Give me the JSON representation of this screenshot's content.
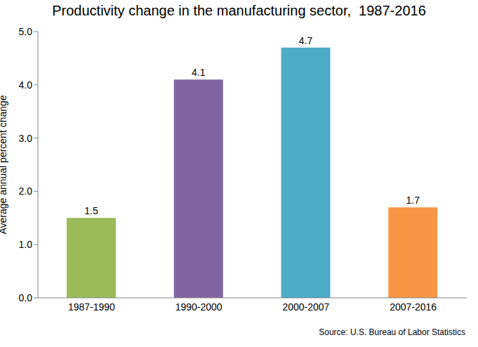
{
  "chart_data": {
    "type": "bar",
    "title": "Productivity change in the manufacturing sector,  1987-2016",
    "y_label": "Average annual percent change",
    "source": "Source: U.S. Bureau of Labor Statistics",
    "categories": [
      "1987-1990",
      "1990-2000",
      "2000-2007",
      "2007-2016"
    ],
    "values": [
      1.5,
      4.1,
      4.7,
      1.7
    ],
    "colors": [
      "#9BBB59",
      "#8064A2",
      "#4BACC6",
      "#F79646"
    ],
    "ylim": [
      0,
      5
    ],
    "yticks": [
      {
        "value": 0,
        "label": "0.0"
      },
      {
        "value": 1,
        "label": "1.0"
      },
      {
        "value": 2,
        "label": "2.0"
      },
      {
        "value": 3,
        "label": "3.0"
      },
      {
        "value": 4,
        "label": "4.0"
      },
      {
        "value": 5,
        "label": "5.0"
      }
    ],
    "grid": false,
    "data_labels": true
  }
}
